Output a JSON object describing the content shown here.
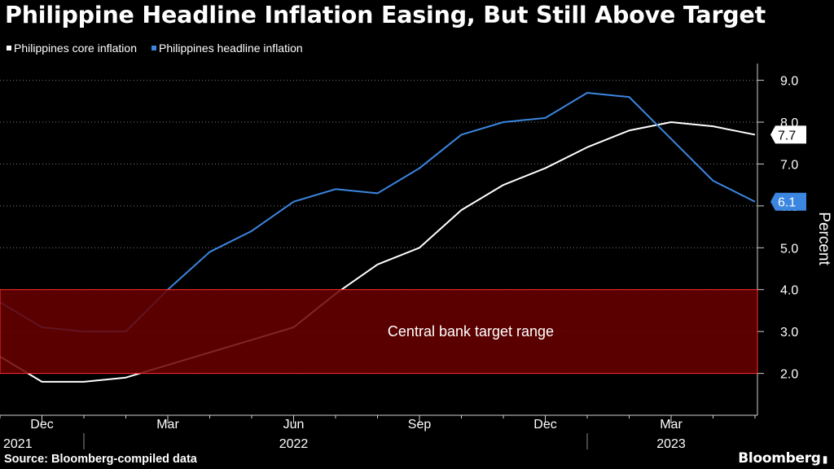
{
  "chart_data": {
    "type": "line",
    "title": "Philippine Headline Inflation Easing, But Still Above Target",
    "xlabel": "",
    "ylabel": "Percent",
    "ylim": [
      1.0,
      9.4
    ],
    "y_ticks": [
      "2.0",
      "3.0",
      "4.0",
      "5.0",
      "6.0",
      "7.0",
      "8.0",
      "9.0"
    ],
    "grid": true,
    "legend_position": "top-left",
    "x": [
      "Nov 2021",
      "Dec 2021",
      "Jan 2022",
      "Feb 2022",
      "Mar 2022",
      "Apr 2022",
      "May 2022",
      "Jun 2022",
      "Jul 2022",
      "Aug 2022",
      "Sep 2022",
      "Oct 2022",
      "Nov 2022",
      "Dec 2022",
      "Jan 2023",
      "Feb 2023",
      "Mar 2023",
      "Apr 2023",
      "May 2023"
    ],
    "x_tick_labels": [
      {
        "label": "Dec",
        "index": 1
      },
      {
        "label": "Mar",
        "index": 4
      },
      {
        "label": "Jun",
        "index": 7
      },
      {
        "label": "Sep",
        "index": 10
      },
      {
        "label": "Dec",
        "index": 13
      },
      {
        "label": "Mar",
        "index": 16
      }
    ],
    "year_labels": [
      {
        "label": "2021",
        "index": 0
      },
      {
        "label": "2022",
        "index": 7
      },
      {
        "label": "2023",
        "index": 16
      }
    ],
    "series": [
      {
        "name": "Philippines core inflation",
        "color": "#ffffff",
        "values": [
          2.4,
          1.8,
          1.8,
          1.9,
          2.2,
          2.5,
          2.8,
          3.1,
          3.9,
          4.6,
          5.0,
          5.9,
          6.5,
          6.9,
          7.4,
          7.8,
          8.0,
          7.9,
          7.7
        ],
        "end_label": "7.7"
      },
      {
        "name": "Philippines headline inflation",
        "color": "#3b86e0",
        "values": [
          3.7,
          3.1,
          3.0,
          3.0,
          4.0,
          4.9,
          5.4,
          6.1,
          6.4,
          6.3,
          6.9,
          7.7,
          8.0,
          8.1,
          8.7,
          8.6,
          7.6,
          6.6,
          6.1
        ],
        "end_label": "6.1"
      }
    ],
    "annotations": [
      {
        "type": "band",
        "y0": 2.0,
        "y1": 4.0,
        "label": "Central bank target range",
        "color": "#6a0000"
      }
    ]
  },
  "source": "Source: Bloomberg-compiled data",
  "brand": "Bloomberg"
}
